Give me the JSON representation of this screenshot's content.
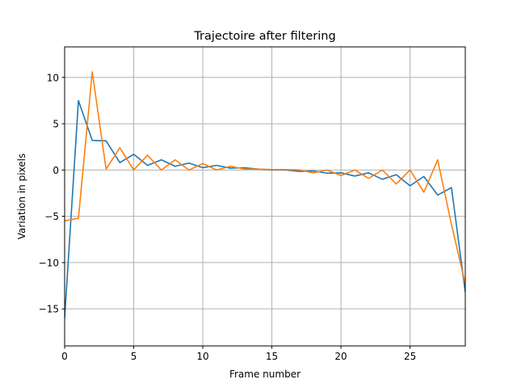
{
  "chart_data": {
    "type": "line",
    "title": "Trajectoire after filtering",
    "xlabel": "Frame number",
    "ylabel": "Variation in pixels",
    "xlim": [
      0,
      29
    ],
    "ylim": [
      -19,
      13.3
    ],
    "xticks": [
      0,
      5,
      10,
      15,
      20,
      25
    ],
    "yticks": [
      -15,
      -10,
      -5,
      0,
      5,
      10
    ],
    "x_tick_labels": [
      "0",
      "5",
      "10",
      "15",
      "20",
      "25"
    ],
    "y_tick_labels": [
      "−15",
      "−10",
      "−5",
      "0",
      "5",
      "10"
    ],
    "grid": true,
    "x": [
      0,
      1,
      2,
      3,
      4,
      5,
      6,
      7,
      8,
      9,
      10,
      11,
      12,
      13,
      14,
      15,
      16,
      17,
      18,
      19,
      20,
      21,
      22,
      23,
      24,
      25,
      26,
      27,
      28,
      29
    ],
    "series": [
      {
        "color": "#1f77b4",
        "values": [
          -16.0,
          7.5,
          3.2,
          3.15,
          0.8,
          1.7,
          0.5,
          1.1,
          0.4,
          0.75,
          0.25,
          0.5,
          0.2,
          0.25,
          0.1,
          0.0,
          0.0,
          -0.15,
          -0.1,
          -0.35,
          -0.3,
          -0.65,
          -0.3,
          -1.0,
          -0.5,
          -1.7,
          -0.7,
          -2.7,
          -1.9,
          -13.2
        ]
      },
      {
        "color": "#ff7f0e",
        "values": [
          -5.5,
          -5.2,
          10.6,
          0.1,
          2.4,
          0.0,
          1.6,
          0.0,
          1.1,
          0.0,
          0.7,
          0.0,
          0.4,
          0.1,
          0.1,
          0.05,
          0.05,
          0.0,
          -0.3,
          0.0,
          -0.6,
          0.0,
          -0.9,
          0.0,
          -1.5,
          0.0,
          -2.4,
          1.1,
          -5.9,
          -12.3
        ]
      }
    ]
  }
}
